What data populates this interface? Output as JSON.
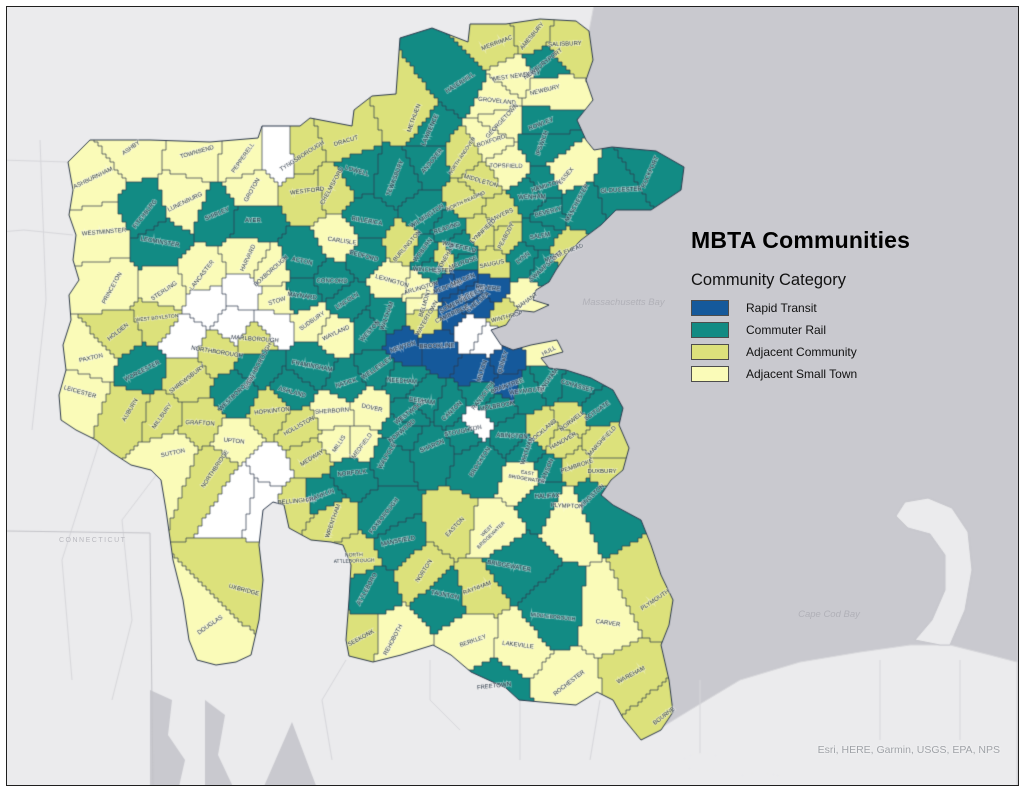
{
  "title": "MBTA Communities",
  "legend": {
    "header": "Community Category",
    "items": [
      {
        "key": "rt",
        "label": "Rapid Transit",
        "color": "#15599B"
      },
      {
        "key": "cr",
        "label": "Commuter Rail",
        "color": "#128B84"
      },
      {
        "key": "ac",
        "label": "Adjacent Community",
        "color": "#DCE17B"
      },
      {
        "key": "ast",
        "label": "Adjacent Small Town",
        "color": "#FAFBB8"
      }
    ]
  },
  "map": {
    "category_colors": {
      "rt": "#15599B",
      "cr": "#128B84",
      "ac": "#DCE17B",
      "ast": "#FAFBB8",
      "un": "#FFFFFF"
    },
    "water_labels": {
      "massachusetts_bay": "Massachusetts Bay",
      "cape_cod_bay": "Cape Cod Bay"
    },
    "state_label": "CONNECTICUT",
    "attribution": "Esri, HERE, Garmin, USGS, EPA, NPS",
    "towns_format": "[name, category, x, y]",
    "towns": [
      [
        "ASHBURNHAM",
        "ast",
        93,
        178
      ],
      [
        "ASHBY",
        "ast",
        131,
        148
      ],
      [
        "TOWNSEND",
        "ast",
        197,
        152
      ],
      [
        "PEPPERELL",
        "ast",
        243,
        158
      ],
      [
        "",
        "un",
        283,
        158
      ],
      [
        "WESTMINSTER",
        "ast",
        104,
        232
      ],
      [
        "FITCHBURG",
        "cr",
        145,
        214
      ],
      [
        "LUNENBURG",
        "ast",
        185,
        202
      ],
      [
        "SHIRLEY",
        "cr",
        217,
        214
      ],
      [
        "GROTON",
        "ast",
        252,
        190
      ],
      [
        "AYER",
        "cr",
        253,
        220
      ],
      [
        "LEOMINSTER",
        "cr",
        160,
        242
      ],
      [
        "LANCASTER",
        "ast",
        202,
        275
      ],
      [
        "HARVARD",
        "ast",
        248,
        258
      ],
      [
        "PRINCETON",
        "ast",
        112,
        288
      ],
      [
        "STERLING",
        "ast",
        164,
        291
      ],
      [
        "HOLDEN",
        "ac",
        118,
        332
      ],
      [
        "WEST BOYLSTON",
        "ac",
        157,
        318
      ],
      [
        "PAXTON",
        "ast",
        91,
        358
      ],
      [
        "LEICESTER",
        "ast",
        80,
        392
      ],
      [
        "WORCESTER",
        "cr",
        142,
        371
      ],
      [
        "AUBURN",
        "ac",
        130,
        410
      ],
      [
        "MILLBURY",
        "ac",
        162,
        416
      ],
      [
        "SUTTON",
        "ast",
        173,
        453
      ],
      [
        "GRAFTON",
        "ac",
        200,
        423
      ],
      [
        "NORTHBRIDGE",
        "ac",
        215,
        469
      ],
      [
        "UXBRIDGE",
        "ac",
        244,
        590
      ],
      [
        "DOUGLAS",
        "ast",
        210,
        625
      ],
      [
        "UPTON",
        "ast",
        234,
        441
      ],
      [
        "HOPKINTON",
        "ac",
        272,
        411
      ],
      [
        "SHREWSBURY",
        "ac",
        187,
        379
      ],
      [
        "NORTHBOROUGH",
        "ac",
        217,
        352
      ],
      [
        "MARLBOROUGH",
        "ac",
        255,
        339
      ],
      [
        "SOUTHBOROUGH",
        "cr",
        258,
        366
      ],
      [
        "WESTBOROUGH",
        "cr",
        237,
        393
      ],
      [
        "",
        "un",
        208,
        303
      ],
      [
        "",
        "un",
        185,
        338
      ],
      [
        "",
        "un",
        235,
        325
      ],
      [
        "",
        "un",
        242,
        292
      ],
      [
        "",
        "un",
        272,
        323
      ],
      [
        "ASHLAND",
        "cr",
        292,
        392
      ],
      [
        "FRAMINGHAM",
        "cr",
        312,
        366
      ],
      [
        "NATICK",
        "cr",
        346,
        383
      ],
      [
        "SHERBORN",
        "ast",
        332,
        411
      ],
      [
        "DOVER",
        "ast",
        372,
        408
      ],
      [
        "MEDFIELD",
        "ast",
        362,
        446
      ],
      [
        "MILLIS",
        "ast",
        339,
        444
      ],
      [
        "MEDWAY",
        "ac",
        312,
        458
      ],
      [
        "HOLLISTON",
        "ac",
        299,
        426
      ],
      [
        "",
        "un",
        268,
        472
      ],
      [
        "",
        "un",
        262,
        492
      ],
      [
        "",
        "un",
        245,
        488
      ],
      [
        "BELLINGHAM",
        "ac",
        297,
        501
      ],
      [
        "FRANKLIN",
        "cr",
        320,
        496
      ],
      [
        "WRENTHAM",
        "ac",
        333,
        521
      ],
      [
        "NORFOLK",
        "cr",
        352,
        473
      ],
      [
        "WALPOLE",
        "cr",
        387,
        456
      ],
      [
        "NORWOOD",
        "cr",
        402,
        431
      ],
      [
        "WESTWOOD",
        "cr",
        410,
        412
      ],
      [
        "DEDHAM",
        "cr",
        422,
        401
      ],
      [
        "NEEDHAM",
        "cr",
        402,
        381
      ],
      [
        "WELLESLEY",
        "cr",
        377,
        368
      ],
      [
        "NEWTON",
        "rt",
        403,
        347
      ],
      [
        "WESTON",
        "cr",
        370,
        331
      ],
      [
        "WALTHAM",
        "cr",
        387,
        316
      ],
      [
        "WAYLAND",
        "ast",
        336,
        333
      ],
      [
        "SUDBURY",
        "ast",
        312,
        321
      ],
      [
        "MAYNARD",
        "cr",
        302,
        296
      ],
      [
        "STOW",
        "ast",
        277,
        301
      ],
      [
        "BOXBOROUGH",
        "ast",
        271,
        271
      ],
      [
        "ACTON",
        "cr",
        302,
        261
      ],
      [
        "CONCORD",
        "cr",
        332,
        281
      ],
      [
        "CARLISLE",
        "ast",
        342,
        241
      ],
      [
        "LINCOLN",
        "cr",
        347,
        301
      ],
      [
        "BEDFORD",
        "cr",
        364,
        256
      ],
      [
        "BILLERICA",
        "cr",
        367,
        221
      ],
      [
        "TEWKSBURY",
        "cr",
        395,
        178
      ],
      [
        "WESTFORD",
        "ac",
        307,
        191
      ],
      [
        "CHELMSFORD",
        "ac",
        332,
        186
      ],
      [
        "TYNGSBOROUGH",
        "ac",
        302,
        156
      ],
      [
        "DRACUT",
        "ac",
        346,
        141
      ],
      [
        "LOWELL",
        "cr",
        357,
        171
      ],
      [
        "METHUEN",
        "ac",
        414,
        118
      ],
      [
        "LAWRENCE",
        "cr",
        430,
        130
      ],
      [
        "ANDOVER",
        "cr",
        432,
        161
      ],
      [
        "NORTH ANDOVER",
        "ac",
        462,
        156
      ],
      [
        "HAVERHILL",
        "cr",
        460,
        83
      ],
      [
        "MERRIMAC",
        "ac",
        497,
        43
      ],
      [
        "AMESBURY",
        "ac",
        532,
        36
      ],
      [
        "SALISBURY",
        "ac",
        565,
        44
      ],
      [
        "WEST NEWBURY",
        "ast",
        516,
        76
      ],
      [
        "NEWBURYPORT",
        "cr",
        543,
        64
      ],
      [
        "NEWBURY",
        "ast",
        545,
        90
      ],
      [
        "GROVELAND",
        "ast",
        497,
        101
      ],
      [
        "GEORGETOWN",
        "ast",
        502,
        121
      ],
      [
        "ROWLEY",
        "cr",
        541,
        124
      ],
      [
        "BOXFORD",
        "ast",
        491,
        141
      ],
      [
        "TOPSFIELD",
        "ast",
        506,
        166
      ],
      [
        "IPSWICH",
        "cr",
        542,
        143
      ],
      [
        "ESSEX",
        "ast",
        566,
        176
      ],
      [
        "HAMILTON",
        "cr",
        546,
        186
      ],
      [
        "WENHAM",
        "cr",
        532,
        197
      ],
      [
        "MANCHESTER",
        "cr",
        577,
        203
      ],
      [
        "GLOUCESTER",
        "cr",
        621,
        190
      ],
      [
        "ROCKPORT",
        "cr",
        650,
        172
      ],
      [
        "BEVERLY",
        "cr",
        548,
        212
      ],
      [
        "SALEM",
        "cr",
        540,
        236
      ],
      [
        "MARBLEHEAD",
        "ac",
        564,
        253
      ],
      [
        "SWAMPSCOTT",
        "cr",
        546,
        266
      ],
      [
        "LYNN",
        "cr",
        523,
        258
      ],
      [
        "PEABODY",
        "ac",
        506,
        236
      ],
      [
        "DANVERS",
        "ac",
        500,
        216
      ],
      [
        "MIDDLETON",
        "ac",
        481,
        181
      ],
      [
        "NORTH READING",
        "ac",
        466,
        201
      ],
      [
        "LYNNFIELD",
        "ac",
        483,
        231
      ],
      [
        "WILMINGTON",
        "cr",
        427,
        216
      ],
      [
        "READING",
        "cr",
        447,
        228
      ],
      [
        "WAKEFIELD",
        "cr",
        459,
        247
      ],
      [
        "BURLINGTON",
        "ac",
        407,
        246
      ],
      [
        "WOBURN",
        "cr",
        423,
        250
      ],
      [
        "STONEHAM",
        "ac",
        445,
        259
      ],
      [
        "MELROSE",
        "cr",
        463,
        263
      ],
      [
        "WINCHESTER",
        "cr",
        433,
        270
      ],
      [
        "LEXINGTON",
        "ast",
        392,
        281
      ],
      [
        "ARLINGTON",
        "ast",
        421,
        288
      ],
      [
        "BELMONT",
        "ast",
        425,
        303
      ],
      [
        "WATERTOWN",
        "ac",
        427,
        318
      ],
      [
        "MEDFORD",
        "rt",
        448,
        287
      ],
      [
        "MALDEN",
        "rt",
        463,
        280
      ],
      [
        "EVERETT",
        "rt",
        472,
        294
      ],
      [
        "REVERE",
        "rt",
        488,
        288
      ],
      [
        "CHELSEA",
        "rt",
        478,
        302
      ],
      [
        "SAUGUS",
        "ac",
        492,
        264
      ],
      [
        "WINTHROP",
        "ac",
        507,
        317
      ],
      [
        "NAHANT",
        "ast",
        527,
        301
      ],
      [
        "CAMBRIDGE",
        "rt",
        452,
        314
      ],
      [
        "SOMERVILLE",
        "rt",
        457,
        303
      ],
      [
        "BROOKLINE",
        "rt",
        437,
        346
      ],
      [
        "",
        "un",
        470,
        331
      ],
      [
        "",
        "un",
        488,
        341
      ],
      [
        "MILTON",
        "rt",
        482,
        371
      ],
      [
        "QUINCY",
        "rt",
        503,
        362
      ],
      [
        "BRAINTREE",
        "rt",
        507,
        386
      ],
      [
        "RANDOLPH",
        "cr",
        483,
        396
      ],
      [
        "HOLBROOK",
        "cr",
        497,
        406
      ],
      [
        "",
        "un",
        474,
        420
      ],
      [
        "CANTON",
        "cr",
        452,
        411
      ],
      [
        "SHARON",
        "cr",
        432,
        446
      ],
      [
        "STOUGHTON",
        "cr",
        463,
        431
      ],
      [
        "HULL",
        "ast",
        549,
        351
      ],
      [
        "HINGHAM",
        "cr",
        548,
        381
      ],
      [
        "WEYMOUTH",
        "cr",
        527,
        391
      ],
      [
        "COHASSET",
        "cr",
        577,
        386
      ],
      [
        "SCITUATE",
        "cr",
        597,
        411
      ],
      [
        "NORWELL",
        "ac",
        572,
        421
      ],
      [
        "ROCKLAND",
        "ac",
        543,
        431
      ],
      [
        "HANOVER",
        "ac",
        563,
        441
      ],
      [
        "MARSHFIELD",
        "ac",
        602,
        441
      ],
      [
        "PEMBROKE",
        "ac",
        577,
        466
      ],
      [
        "DUXBURY",
        "ac",
        602,
        471
      ],
      [
        "ABINGTON",
        "cr",
        512,
        436
      ],
      [
        "WHITMAN",
        "cr",
        527,
        451
      ],
      [
        "HANSON",
        "cr",
        547,
        471
      ],
      [
        "EAST BRIDGEWATER",
        "ast",
        527,
        476
      ],
      [
        "BROCKTON",
        "cr",
        480,
        462
      ],
      [
        "EASTON",
        "ac",
        455,
        527
      ],
      [
        "MANSFIELD",
        "cr",
        398,
        541
      ],
      [
        "FOXBOROUGH",
        "cr",
        384,
        516
      ],
      [
        "NORTH ATTLEBOROUGH",
        "ac",
        354,
        558
      ],
      [
        "ATTLEBORO",
        "cr",
        367,
        589
      ],
      [
        "SEEKONK",
        "ac",
        361,
        638
      ],
      [
        "REHOBOTH",
        "ast",
        393,
        640
      ],
      [
        "NORTON",
        "ac",
        424,
        571
      ],
      [
        "TAUNTON",
        "cr",
        445,
        595
      ],
      [
        "RAYNHAM",
        "ac",
        477,
        588
      ],
      [
        "WEST BRIDGEWATER",
        "ast",
        489,
        533
      ],
      [
        "BRIDGEWATER",
        "cr",
        509,
        566
      ],
      [
        "HALIFAX",
        "cr",
        547,
        496
      ],
      [
        "PLYMPTON",
        "ast",
        567,
        506
      ],
      [
        "KINGSTON",
        "cr",
        592,
        496
      ],
      [
        "PLYMOUTH",
        "ac",
        655,
        600
      ],
      [
        "CARVER",
        "ast",
        608,
        623
      ],
      [
        "MIDDLEBOROUGH",
        "cr",
        553,
        617
      ],
      [
        "LAKEVILLE",
        "ast",
        518,
        645
      ],
      [
        "BERKLEY",
        "ast",
        473,
        641
      ],
      [
        "FREETOWN",
        "cr",
        494,
        686
      ],
      [
        "ROCHESTER",
        "ast",
        569,
        683
      ],
      [
        "WAREHAM",
        "ac",
        631,
        675
      ],
      [
        "BOURNE",
        "ac",
        664,
        716
      ]
    ]
  }
}
